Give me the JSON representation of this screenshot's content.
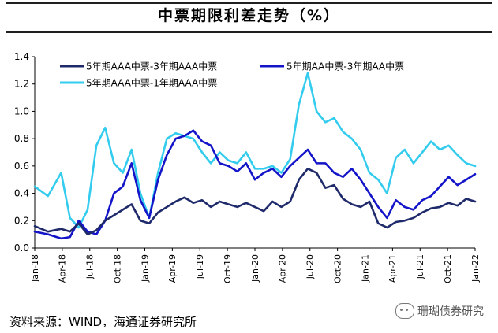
{
  "title": "中票期限利差走势（%）",
  "source": "资料来源：WIND，海通证券研究所",
  "watermark": "珊瑚债券研究",
  "chart_data": {
    "type": "line",
    "ylim": [
      0,
      1.4
    ],
    "yticks": [
      "0.0",
      "0.2",
      "0.4",
      "0.6",
      "0.8",
      "1.0",
      "1.2",
      "1.4"
    ],
    "xticks": [
      "Jan-18",
      "Apr-18",
      "Jul-18",
      "Oct-18",
      "Jan-19",
      "Apr-19",
      "Jul-19",
      "Oct-19",
      "Jan-20",
      "Apr-20",
      "Jul-20",
      "Oct-20",
      "Jan-21",
      "Apr-21",
      "Jul-21",
      "Oct-21",
      "Jan-22"
    ],
    "x_index": [
      0,
      1.5,
      3,
      4,
      5,
      6,
      7,
      8,
      9,
      10,
      11,
      12,
      13,
      14,
      15,
      16,
      17,
      18,
      19,
      20,
      21,
      22,
      23,
      24,
      25,
      26,
      27,
      28,
      29,
      30,
      31,
      32,
      33,
      34,
      35,
      36,
      37,
      38,
      39,
      40,
      41,
      42,
      43,
      44,
      45,
      46,
      47,
      48,
      49,
      50
    ],
    "series": [
      {
        "name": "5年期AAA中票-3年期AAA中票",
        "color": "#1f2a6b",
        "values": [
          0.16,
          0.12,
          0.14,
          0.12,
          0.18,
          0.1,
          0.13,
          0.2,
          0.24,
          0.28,
          0.32,
          0.2,
          0.18,
          0.26,
          0.3,
          0.34,
          0.37,
          0.33,
          0.35,
          0.3,
          0.34,
          0.32,
          0.3,
          0.33,
          0.3,
          0.27,
          0.34,
          0.3,
          0.34,
          0.5,
          0.58,
          0.55,
          0.44,
          0.46,
          0.36,
          0.32,
          0.3,
          0.34,
          0.18,
          0.15,
          0.19,
          0.2,
          0.22,
          0.26,
          0.29,
          0.3,
          0.33,
          0.31,
          0.36,
          0.34
        ]
      },
      {
        "name": "5年期AA中票-3年期AA中票",
        "color": "#1414c8",
        "values": [
          0.12,
          0.1,
          0.07,
          0.08,
          0.2,
          0.12,
          0.1,
          0.2,
          0.4,
          0.45,
          0.62,
          0.35,
          0.22,
          0.5,
          0.68,
          0.8,
          0.82,
          0.86,
          0.78,
          0.75,
          0.62,
          0.6,
          0.56,
          0.62,
          0.5,
          0.55,
          0.58,
          0.52,
          0.6,
          0.66,
          0.72,
          0.62,
          0.62,
          0.55,
          0.52,
          0.58,
          0.5,
          0.4,
          0.3,
          0.22,
          0.35,
          0.3,
          0.28,
          0.35,
          0.38,
          0.45,
          0.52,
          0.46,
          0.5,
          0.54
        ]
      },
      {
        "name": "5年期AAA中票-1年期AAA中票",
        "color": "#33ccee",
        "values": [
          0.45,
          0.38,
          0.55,
          0.22,
          0.15,
          0.28,
          0.75,
          0.88,
          0.62,
          0.55,
          0.72,
          0.4,
          0.22,
          0.55,
          0.8,
          0.84,
          0.82,
          0.8,
          0.7,
          0.62,
          0.7,
          0.64,
          0.62,
          0.7,
          0.58,
          0.58,
          0.6,
          0.55,
          0.65,
          1.05,
          1.28,
          1.0,
          0.92,
          0.95,
          0.85,
          0.8,
          0.72,
          0.55,
          0.5,
          0.4,
          0.66,
          0.72,
          0.62,
          0.7,
          0.78,
          0.72,
          0.75,
          0.68,
          0.62,
          0.6
        ]
      }
    ]
  }
}
